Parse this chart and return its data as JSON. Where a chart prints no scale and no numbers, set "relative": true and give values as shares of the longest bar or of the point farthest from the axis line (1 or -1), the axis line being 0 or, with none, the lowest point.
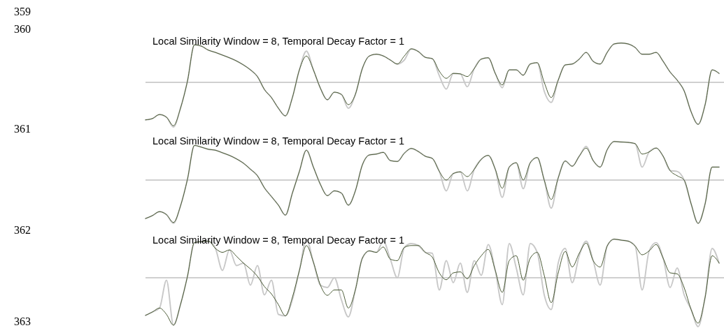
{
  "chart_data": [
    {
      "type": "line",
      "title": "Local Similarity Window = 8, Temporal Decay Factor = 1",
      "relative": true,
      "annotations": [
        "359",
        "360"
      ],
      "categories": [
        null,
        null,
        null,
        null,
        null,
        null,
        null,
        null,
        null,
        null,
        null,
        null,
        null,
        null,
        null,
        null,
        null,
        null,
        null,
        null,
        null,
        null,
        null,
        null,
        null,
        null,
        null,
        null,
        null,
        null,
        null,
        null,
        null,
        null,
        null,
        null,
        null,
        null,
        null,
        null,
        null,
        null,
        null,
        null,
        null,
        null,
        null,
        null,
        null,
        null,
        null,
        null,
        null,
        null,
        null,
        null,
        null,
        null,
        null,
        null,
        null,
        null,
        null,
        null,
        null,
        null,
        null,
        null,
        null,
        null,
        null,
        null,
        null,
        null,
        null,
        null,
        null,
        null,
        null,
        null,
        null,
        null,
        null
      ],
      "series": [
        {
          "color": "#c8c8c8",
          "values": [
            -0.84,
            -0.81,
            -0.72,
            -0.78,
            -1.0,
            -0.58,
            0.03,
            0.84,
            0.81,
            0.72,
            0.67,
            0.61,
            0.55,
            0.48,
            0.39,
            0.28,
            0.13,
            -0.16,
            -0.34,
            -0.58,
            -0.75,
            -0.34,
            0.28,
            0.7,
            0.28,
            -0.13,
            -0.39,
            -0.22,
            -0.27,
            -0.58,
            -0.27,
            0.31,
            0.59,
            0.63,
            0.59,
            0.5,
            0.41,
            0.5,
            0.75,
            0.69,
            0.56,
            0.53,
            0.15,
            -0.15,
            0.2,
            0.19,
            -0.1,
            0.31,
            0.52,
            0.55,
            0.2,
            -0.12,
            0.28,
            0.28,
            0.16,
            0.41,
            0.44,
            -0.2,
            -0.45,
            0.05,
            0.39,
            0.41,
            0.52,
            0.67,
            0.47,
            0.41,
            0.67,
            0.86,
            0.88,
            0.86,
            0.78,
            0.63,
            0.63,
            0.67,
            0.47,
            0.23,
            0.05,
            -0.19,
            -0.66,
            -0.94,
            -0.5,
            0.28,
            0.2
          ]
        },
        {
          "color": "#4a5a35",
          "values": [
            -0.84,
            -0.81,
            -0.72,
            -0.78,
            -0.97,
            -0.58,
            0.03,
            0.84,
            0.81,
            0.72,
            0.67,
            0.61,
            0.55,
            0.48,
            0.39,
            0.28,
            0.13,
            -0.16,
            -0.34,
            -0.58,
            -0.75,
            -0.34,
            0.28,
            0.59,
            0.28,
            -0.13,
            -0.39,
            -0.22,
            -0.27,
            -0.5,
            -0.27,
            0.31,
            0.59,
            0.63,
            0.59,
            0.5,
            0.41,
            0.59,
            0.75,
            0.69,
            0.56,
            0.53,
            0.25,
            0.09,
            0.2,
            0.19,
            0.13,
            0.31,
            0.52,
            0.55,
            0.2,
            -0.06,
            0.28,
            0.28,
            0.16,
            0.41,
            0.44,
            0.0,
            -0.34,
            0.05,
            0.39,
            0.41,
            0.52,
            0.67,
            0.47,
            0.41,
            0.67,
            0.86,
            0.88,
            0.86,
            0.78,
            0.63,
            0.63,
            0.67,
            0.47,
            0.23,
            0.05,
            -0.19,
            -0.66,
            -0.94,
            -0.5,
            0.28,
            0.2
          ]
        }
      ]
    },
    {
      "type": "line",
      "title": "Local Similarity Window = 8, Temporal Decay Factor = 1",
      "relative": true,
      "annotations": [
        "361"
      ],
      "categories": [
        null,
        null,
        null,
        null,
        null,
        null,
        null,
        null,
        null,
        null,
        null,
        null,
        null,
        null,
        null,
        null,
        null,
        null,
        null,
        null,
        null,
        null,
        null,
        null,
        null,
        null,
        null,
        null,
        null,
        null,
        null,
        null,
        null,
        null,
        null,
        null,
        null,
        null,
        null,
        null,
        null,
        null,
        null,
        null,
        null,
        null,
        null,
        null,
        null,
        null,
        null,
        null,
        null,
        null,
        null,
        null,
        null,
        null,
        null,
        null,
        null,
        null,
        null,
        null,
        null,
        null,
        null,
        null,
        null,
        null,
        null,
        null,
        null,
        null,
        null,
        null,
        null,
        null,
        null,
        null,
        null,
        null,
        null
      ],
      "series": [
        {
          "color": "#c8c8c8",
          "values": [
            -0.89,
            -0.82,
            -0.73,
            -0.8,
            -1.0,
            -0.6,
            0.02,
            0.8,
            0.76,
            0.71,
            0.69,
            0.63,
            0.57,
            0.49,
            0.39,
            0.25,
            0.1,
            -0.18,
            -0.38,
            -0.58,
            -0.81,
            -0.3,
            0.2,
            0.69,
            0.3,
            -0.1,
            -0.36,
            -0.25,
            -0.3,
            -0.58,
            -0.25,
            0.35,
            0.58,
            0.6,
            0.64,
            0.45,
            0.43,
            0.62,
            0.73,
            0.66,
            0.55,
            0.5,
            0.2,
            -0.25,
            0.15,
            0.19,
            -0.25,
            0.25,
            0.48,
            0.57,
            0.25,
            -0.4,
            0.3,
            0.4,
            -0.2,
            0.4,
            0.52,
            0.0,
            -0.65,
            0.05,
            0.44,
            0.32,
            0.55,
            0.78,
            0.45,
            0.3,
            0.7,
            0.89,
            0.88,
            0.87,
            0.84,
            0.3,
            0.65,
            0.74,
            0.55,
            0.22,
            0.2,
            0.0,
            -0.55,
            -1.0,
            -0.55,
            0.3,
            0.3
          ]
        },
        {
          "color": "#4a5a35",
          "values": [
            -0.89,
            -0.82,
            -0.73,
            -0.8,
            -0.98,
            -0.6,
            0.02,
            0.8,
            0.76,
            0.71,
            0.69,
            0.63,
            0.57,
            0.49,
            0.39,
            0.25,
            0.1,
            -0.18,
            -0.38,
            -0.58,
            -0.81,
            -0.3,
            0.2,
            0.69,
            0.3,
            -0.1,
            -0.36,
            -0.25,
            -0.3,
            -0.58,
            -0.25,
            0.35,
            0.58,
            0.6,
            0.64,
            0.45,
            0.43,
            0.62,
            0.73,
            0.66,
            0.55,
            0.5,
            0.2,
            0.0,
            0.15,
            0.19,
            0.08,
            0.25,
            0.48,
            0.57,
            0.25,
            -0.19,
            0.3,
            0.4,
            0.0,
            0.4,
            0.52,
            0.0,
            -0.45,
            0.05,
            0.44,
            0.32,
            0.55,
            0.74,
            0.45,
            0.3,
            0.7,
            0.89,
            0.88,
            0.87,
            0.84,
            0.6,
            0.65,
            0.74,
            0.55,
            0.22,
            0.1,
            0.0,
            -0.55,
            -1.0,
            -0.55,
            0.3,
            0.3
          ]
        }
      ]
    },
    {
      "type": "line",
      "title": "Local Similarity Window = 8, Temporal Decay Factor = 1",
      "relative": true,
      "annotations": [
        "362",
        "363"
      ],
      "categories": [
        null,
        null,
        null,
        null,
        null,
        null,
        null,
        null,
        null,
        null,
        null,
        null,
        null,
        null,
        null,
        null,
        null,
        null,
        null,
        null,
        null,
        null,
        null,
        null,
        null,
        null,
        null,
        null,
        null,
        null,
        null,
        null,
        null,
        null,
        null,
        null,
        null,
        null,
        null,
        null,
        null,
        null,
        null,
        null,
        null,
        null,
        null,
        null,
        null,
        null,
        null,
        null,
        null,
        null,
        null,
        null,
        null,
        null,
        null,
        null,
        null,
        null,
        null,
        null,
        null,
        null,
        null,
        null,
        null,
        null,
        null,
        null,
        null,
        null,
        null,
        null,
        null,
        null,
        null,
        null,
        null,
        null,
        null
      ],
      "series": [
        {
          "color": "#c8c8c8",
          "values": [
            -0.77,
            -0.7,
            -0.62,
            -0.05,
            -0.97,
            -0.55,
            0.03,
            0.72,
            0.74,
            0.75,
            0.6,
            0.15,
            0.57,
            0.25,
            0.3,
            -0.15,
            0.25,
            -0.35,
            -0.05,
            -0.75,
            -0.78,
            -0.45,
            0.15,
            0.79,
            0.32,
            -0.15,
            -0.2,
            0.0,
            -0.45,
            -0.8,
            -0.25,
            0.4,
            0.55,
            0.52,
            0.75,
            0.38,
            0.0,
            0.62,
            0.7,
            0.66,
            0.52,
            0.5,
            -0.25,
            0.35,
            -0.1,
            0.3,
            -0.3,
            0.35,
            0.05,
            0.68,
            0.15,
            -0.55,
            0.7,
            0.2,
            -0.35,
            0.7,
            0.52,
            -0.35,
            -0.65,
            0.3,
            0.6,
            -0.1,
            0.45,
            0.75,
            0.35,
            -0.15,
            0.65,
            0.79,
            0.77,
            0.75,
            0.65,
            -0.25,
            0.55,
            0.72,
            0.4,
            -0.2,
            0.2,
            -0.35,
            -0.65,
            -1.0,
            -0.4,
            0.6,
            0.3
          ]
        },
        {
          "color": "#4a5a35",
          "values": [
            -0.77,
            -0.7,
            -0.62,
            -0.75,
            -0.97,
            -0.55,
            0.03,
            0.72,
            0.74,
            0.75,
            0.6,
            0.52,
            0.57,
            0.44,
            0.3,
            0.18,
            0.03,
            -0.18,
            -0.33,
            -0.55,
            -0.78,
            -0.4,
            0.15,
            0.66,
            0.32,
            -0.15,
            -0.36,
            -0.25,
            -0.25,
            -0.62,
            -0.25,
            0.4,
            0.55,
            0.52,
            0.63,
            0.38,
            0.35,
            0.62,
            0.66,
            0.66,
            0.52,
            0.42,
            0.1,
            -0.04,
            0.1,
            0.12,
            -0.02,
            0.25,
            0.45,
            0.58,
            0.15,
            -0.3,
            0.35,
            0.45,
            -0.05,
            0.4,
            0.52,
            0.05,
            -0.51,
            0.1,
            0.54,
            0.22,
            0.5,
            0.71,
            0.35,
            0.22,
            0.65,
            0.79,
            0.77,
            0.75,
            0.65,
            0.47,
            0.55,
            0.68,
            0.4,
            0.1,
            0.08,
            -0.2,
            -0.65,
            -0.93,
            -0.4,
            0.45,
            0.3
          ]
        }
      ]
    }
  ]
}
